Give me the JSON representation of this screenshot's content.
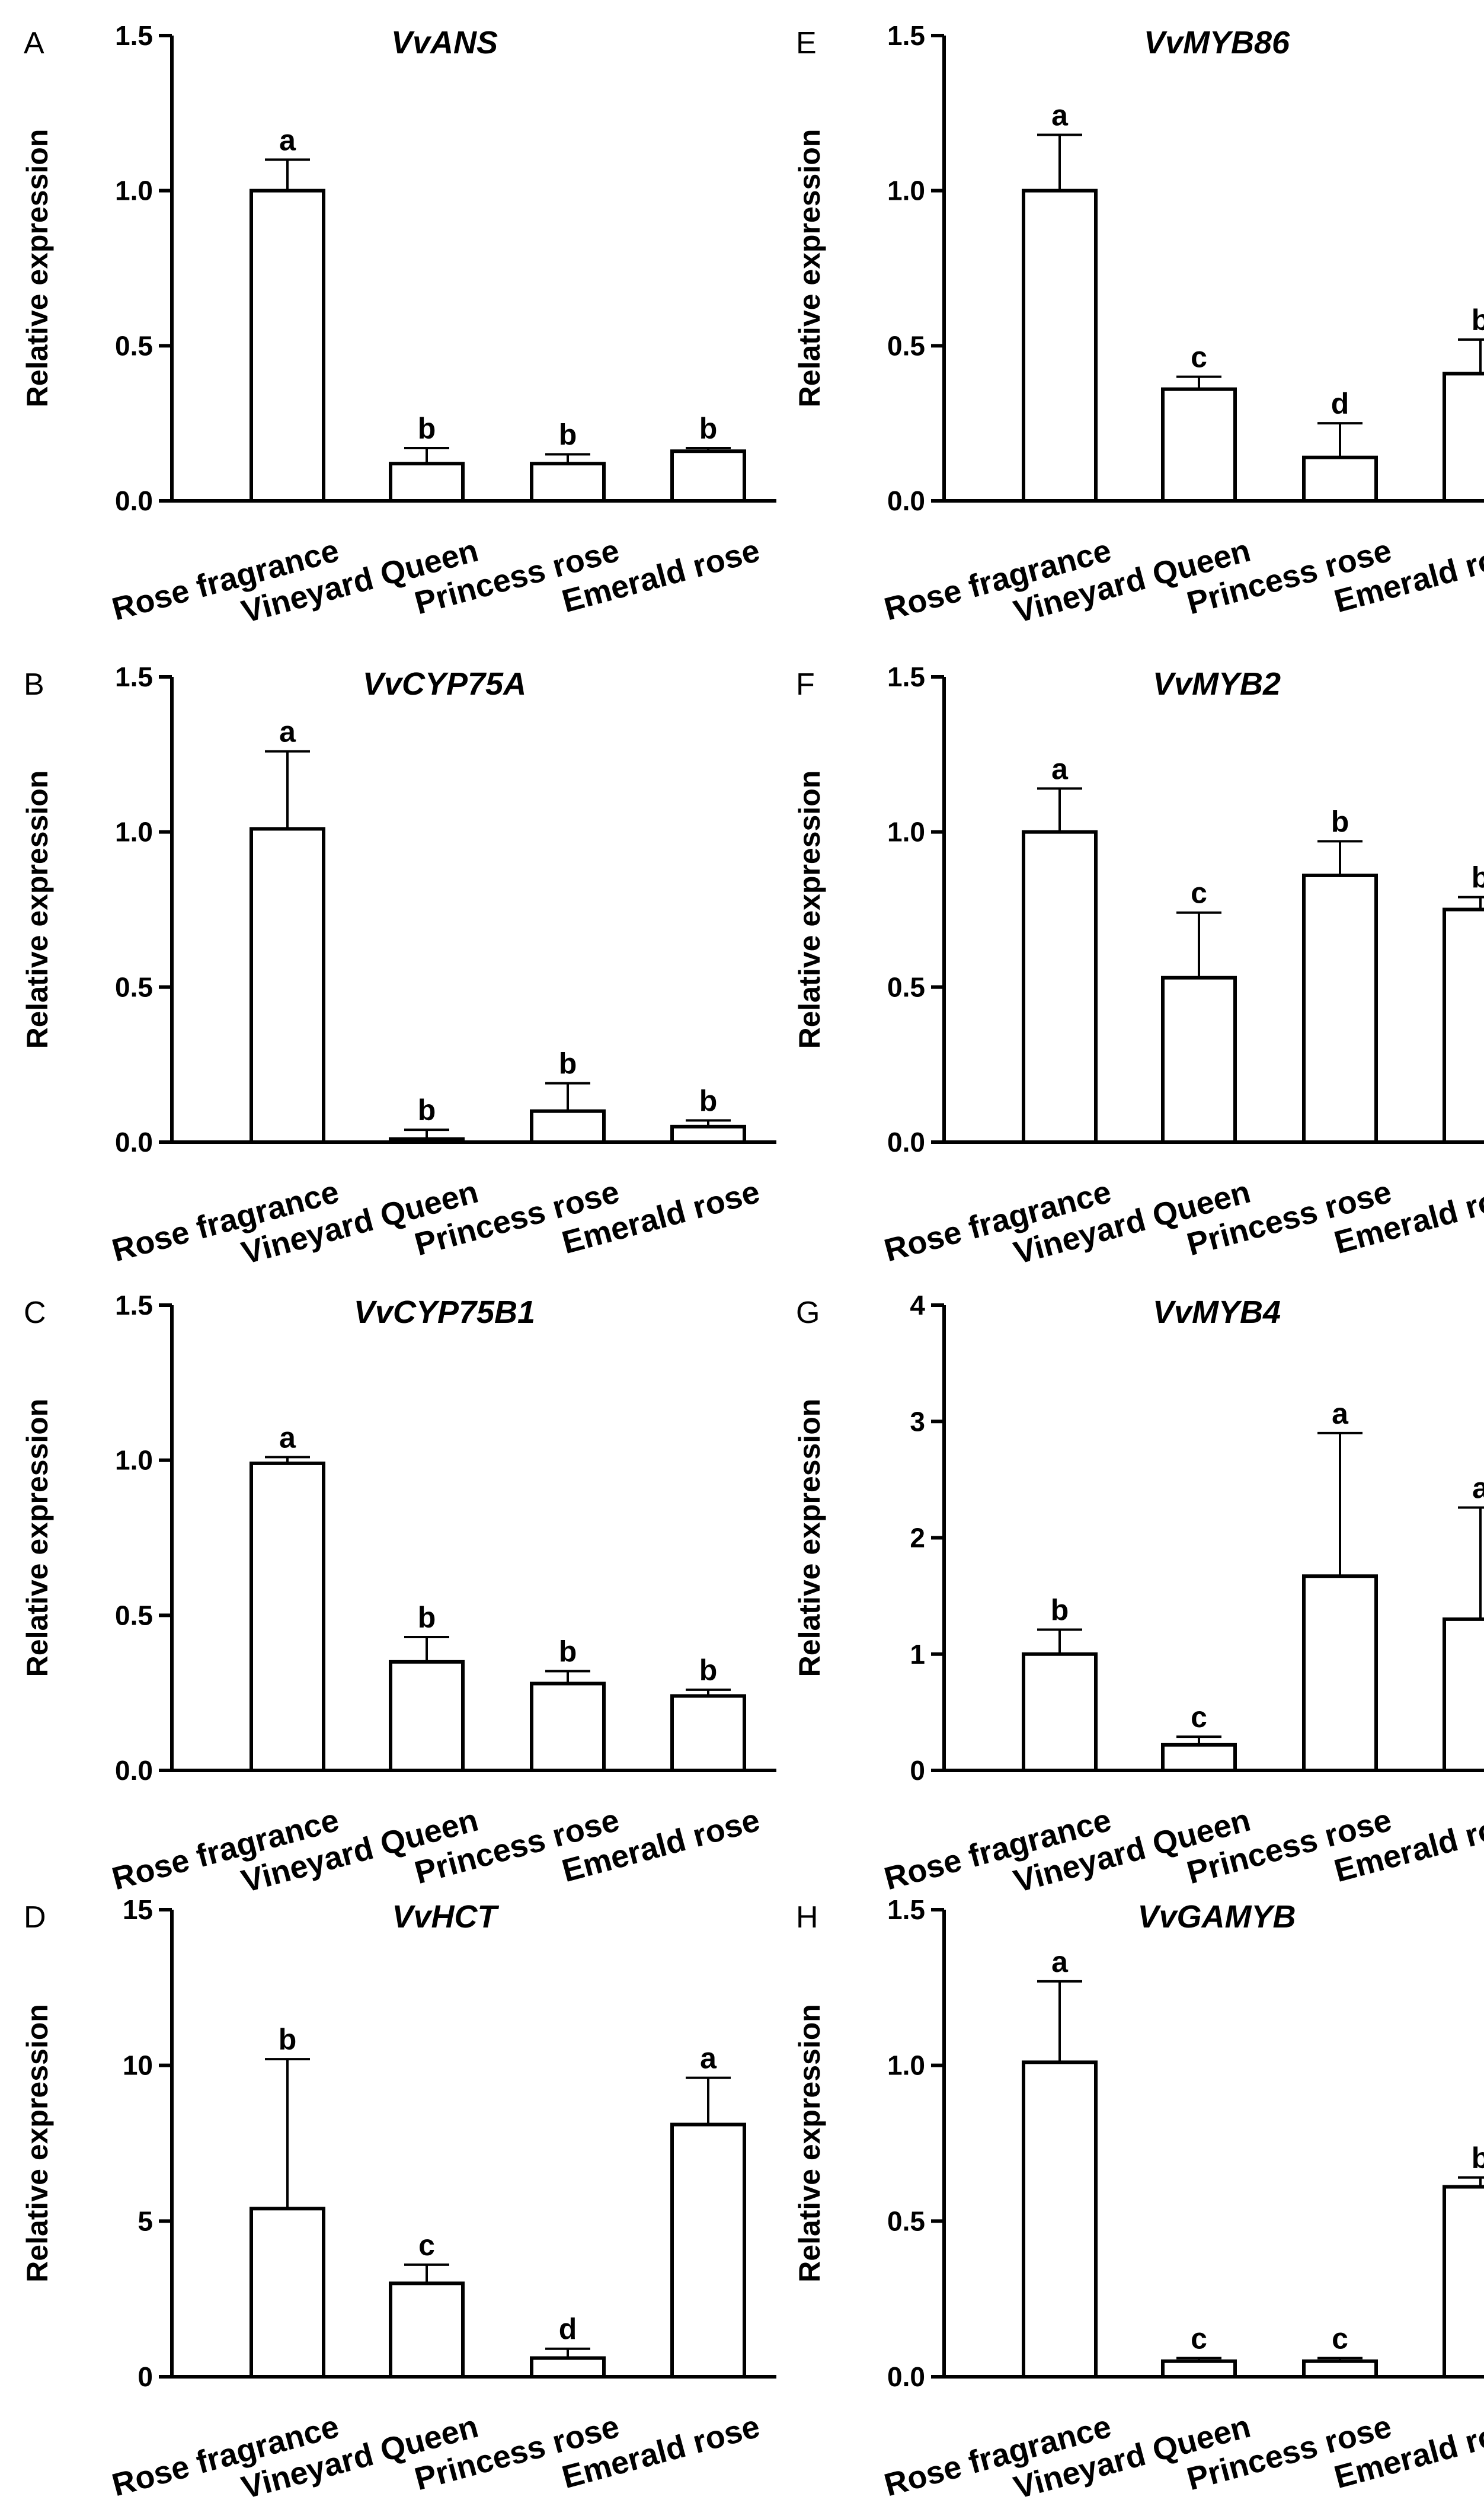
{
  "figure": {
    "chart_data": [
      {
        "type": "bar",
        "panel": "A",
        "title": "VvANS",
        "ylabel": "Relative expression",
        "categories": [
          "Rose fragrance",
          "Vineyard Queen",
          "Princess rose",
          "Emerald rose"
        ],
        "values": [
          1.0,
          0.12,
          0.12,
          0.16
        ],
        "errors": [
          0.1,
          0.05,
          0.03,
          0.01
        ],
        "significance": [
          "a",
          "b",
          "b",
          "b"
        ],
        "ylim": [
          0,
          1.5
        ],
        "yticks": [
          0.0,
          0.5,
          1.0,
          1.5
        ],
        "ytick_labels": [
          "0.0",
          "0.5",
          "1.0",
          "1.5"
        ]
      },
      {
        "type": "bar",
        "panel": "B",
        "title": "VvCYP75A",
        "ylabel": "Relative expression",
        "categories": [
          "Rose fragrance",
          "Vineyard Queen",
          "Princess rose",
          "Emerald rose"
        ],
        "values": [
          1.01,
          0.01,
          0.1,
          0.05
        ],
        "errors": [
          0.25,
          0.03,
          0.09,
          0.02
        ],
        "significance": [
          "a",
          "b",
          "b",
          "b"
        ],
        "ylim": [
          0,
          1.5
        ],
        "yticks": [
          0.0,
          0.5,
          1.0,
          1.5
        ],
        "ytick_labels": [
          "0.0",
          "0.5",
          "1.0",
          "1.5"
        ]
      },
      {
        "type": "bar",
        "panel": "C",
        "title": "VvCYP75B1",
        "ylabel": "Relative expression",
        "categories": [
          "Rose fragrance",
          "Vineyard Queen",
          "Princess rose",
          "Emerald rose"
        ],
        "values": [
          0.99,
          0.35,
          0.28,
          0.24
        ],
        "errors": [
          0.02,
          0.08,
          0.04,
          0.02
        ],
        "significance": [
          "a",
          "b",
          "b",
          "b"
        ],
        "ylim": [
          0,
          1.5
        ],
        "yticks": [
          0.0,
          0.5,
          1.0,
          1.5
        ],
        "ytick_labels": [
          "0.0",
          "0.5",
          "1.0",
          "1.5"
        ]
      },
      {
        "type": "bar",
        "panel": "D",
        "title": "VvHCT",
        "ylabel": "Relative expression",
        "categories": [
          "Rose fragrance",
          "Vineyard Queen",
          "Princess rose",
          "Emerald rose"
        ],
        "values": [
          5.4,
          3.0,
          0.6,
          8.1
        ],
        "errors": [
          4.8,
          0.6,
          0.3,
          1.5
        ],
        "significance": [
          "b",
          "c",
          "d",
          "a"
        ],
        "ylim": [
          0,
          15
        ],
        "yticks": [
          0,
          5,
          10,
          15
        ],
        "ytick_labels": [
          "0",
          "5",
          "10",
          "15"
        ]
      },
      {
        "type": "bar",
        "panel": "E",
        "title": "VvMYB86",
        "ylabel": "Relative expression",
        "categories": [
          "Rose fragrance",
          "Vineyard Queen",
          "Princess rose",
          "Emerald rose"
        ],
        "values": [
          1.0,
          0.36,
          0.14,
          0.41
        ],
        "errors": [
          0.18,
          0.04,
          0.11,
          0.11
        ],
        "significance": [
          "a",
          "c",
          "d",
          "b"
        ],
        "ylim": [
          0,
          1.5
        ],
        "yticks": [
          0.0,
          0.5,
          1.0,
          1.5
        ],
        "ytick_labels": [
          "0.0",
          "0.5",
          "1.0",
          "1.5"
        ]
      },
      {
        "type": "bar",
        "panel": "F",
        "title": "VvMYB2",
        "ylabel": "Relative expression",
        "categories": [
          "Rose fragrance",
          "Vineyard Queen",
          "Princess rose",
          "Emerald rose"
        ],
        "values": [
          1.0,
          0.53,
          0.86,
          0.75
        ],
        "errors": [
          0.14,
          0.21,
          0.11,
          0.04
        ],
        "significance": [
          "a",
          "c",
          "b",
          "b"
        ],
        "ylim": [
          0,
          1.5
        ],
        "yticks": [
          0.0,
          0.5,
          1.0,
          1.5
        ],
        "ytick_labels": [
          "0.0",
          "0.5",
          "1.0",
          "1.5"
        ]
      },
      {
        "type": "bar",
        "panel": "G",
        "title": "VvMYB4",
        "ylabel": "Relative expression",
        "categories": [
          "Rose fragrance",
          "Vineyard Queen",
          "Princess rose",
          "Emerald rose"
        ],
        "values": [
          1.0,
          0.22,
          1.67,
          1.3
        ],
        "errors": [
          0.21,
          0.07,
          1.23,
          0.96
        ],
        "significance": [
          "b",
          "c",
          "a",
          "a"
        ],
        "ylim": [
          0,
          4
        ],
        "yticks": [
          0,
          1,
          2,
          3,
          4
        ],
        "ytick_labels": [
          "0",
          "1",
          "2",
          "3",
          "4"
        ]
      },
      {
        "type": "bar",
        "panel": "H",
        "title": "VvGAMYB",
        "ylabel": "Relative expression",
        "categories": [
          "Rose fragrance",
          "Vineyard Queen",
          "Princess rose",
          "Emerald rose"
        ],
        "values": [
          1.01,
          0.05,
          0.05,
          0.61
        ],
        "errors": [
          0.26,
          0.01,
          0.01,
          0.03
        ],
        "significance": [
          "a",
          "c",
          "c",
          "b"
        ],
        "ylim": [
          0,
          1.5
        ],
        "yticks": [
          0.0,
          0.5,
          1.0,
          1.5
        ],
        "ytick_labels": [
          "0.0",
          "0.5",
          "1.0",
          "1.5"
        ]
      }
    ]
  }
}
